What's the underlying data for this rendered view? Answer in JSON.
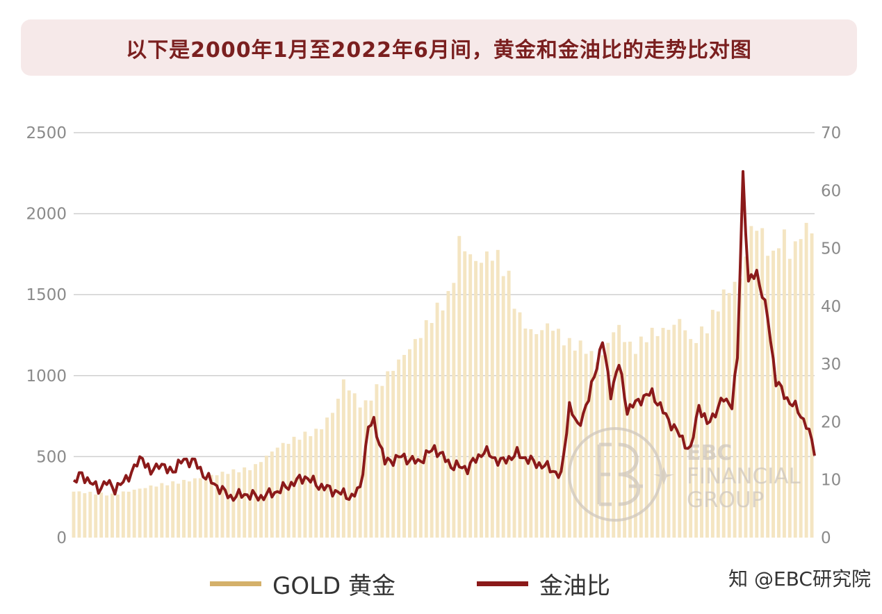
{
  "header": {
    "title": "以下是2000年1月至2022年6月间，黄金和金油比的走势比对图"
  },
  "legend": {
    "gold_label": "GOLD 黄金",
    "ratio_label": "金油比"
  },
  "source": {
    "text": "知 @EBC研究院"
  },
  "watermark": {
    "line1": "EBC",
    "line2": "FINANCIAL",
    "line3": "GROUP"
  },
  "colors": {
    "gold": "#d4b06a",
    "gold_bar": "#f4e5c2",
    "ratio": "#8b1a1a",
    "grid": "#cfcfcf",
    "axis_text": "#8a8a8a"
  },
  "chart_data": {
    "type": "bar+line",
    "x_range": [
      "2000-01",
      "2022-06"
    ],
    "y_left": {
      "ticks": [
        0,
        500,
        1000,
        1500,
        2000,
        2500
      ],
      "ylim": [
        0,
        2500
      ]
    },
    "y_right": {
      "ticks": [
        0,
        10,
        20,
        30,
        40,
        50,
        60,
        70
      ],
      "ylim": [
        0,
        70
      ]
    },
    "grid": "horizontal",
    "legend_position": "bottom",
    "series": [
      {
        "name": "GOLD 黄金",
        "type": "bar",
        "axis": "left",
        "keypoints": [
          [
            "2000-01",
            285
          ],
          [
            "2001-03",
            265
          ],
          [
            "2002-06",
            320
          ],
          [
            "2003-06",
            350
          ],
          [
            "2004-06",
            395
          ],
          [
            "2005-06",
            430
          ],
          [
            "2006-03",
            560
          ],
          [
            "2006-12",
            630
          ],
          [
            "2007-06",
            660
          ],
          [
            "2007-12",
            800
          ],
          [
            "2008-03",
            970
          ],
          [
            "2008-10",
            800
          ],
          [
            "2009-03",
            920
          ],
          [
            "2009-12",
            1110
          ],
          [
            "2010-06",
            1230
          ],
          [
            "2010-12",
            1390
          ],
          [
            "2011-06",
            1500
          ],
          [
            "2011-09",
            1830
          ],
          [
            "2012-03",
            1700
          ],
          [
            "2012-10",
            1760
          ],
          [
            "2013-03",
            1600
          ],
          [
            "2013-06",
            1380
          ],
          [
            "2013-12",
            1250
          ],
          [
            "2014-06",
            1320
          ],
          [
            "2014-12",
            1200
          ],
          [
            "2015-06",
            1180
          ],
          [
            "2015-12",
            1080
          ],
          [
            "2016-06",
            1320
          ],
          [
            "2016-12",
            1150
          ],
          [
            "2017-06",
            1260
          ],
          [
            "2017-12",
            1280
          ],
          [
            "2018-06",
            1350
          ],
          [
            "2018-09",
            1200
          ],
          [
            "2019-03",
            1300
          ],
          [
            "2019-09",
            1500
          ],
          [
            "2020-03",
            1600
          ],
          [
            "2020-08",
            1970
          ],
          [
            "2021-03",
            1720
          ],
          [
            "2021-06",
            1900
          ],
          [
            "2021-09",
            1760
          ],
          [
            "2021-12",
            1820
          ],
          [
            "2022-03",
            1940
          ],
          [
            "2022-06",
            1830
          ]
        ]
      },
      {
        "name": "金油比",
        "type": "line",
        "axis": "right",
        "keypoints": [
          [
            "2000-01",
            9.5
          ],
          [
            "2000-04",
            11
          ],
          [
            "2000-07",
            9.5
          ],
          [
            "2000-10",
            8.5
          ],
          [
            "2001-01",
            9.5
          ],
          [
            "2001-04",
            8.5
          ],
          [
            "2001-07",
            9.5
          ],
          [
            "2001-11",
            12
          ],
          [
            "2002-02",
            14
          ],
          [
            "2002-05",
            11
          ],
          [
            "2002-08",
            13
          ],
          [
            "2002-11",
            11.5
          ],
          [
            "2003-02",
            12
          ],
          [
            "2003-05",
            13.5
          ],
          [
            "2003-09",
            13
          ],
          [
            "2004-01",
            10.5
          ],
          [
            "2004-06",
            8.5
          ],
          [
            "2004-10",
            7
          ],
          [
            "2005-03",
            7.5
          ],
          [
            "2005-09",
            7
          ],
          [
            "2006-03",
            8
          ],
          [
            "2006-09",
            9.5
          ],
          [
            "2007-01",
            10.5
          ],
          [
            "2007-06",
            9
          ],
          [
            "2007-12",
            8
          ],
          [
            "2008-06",
            7
          ],
          [
            "2008-09",
            8.5
          ],
          [
            "2008-12",
            19
          ],
          [
            "2009-02",
            20
          ],
          [
            "2009-06",
            13
          ],
          [
            "2009-12",
            14
          ],
          [
            "2010-06",
            13
          ],
          [
            "2010-12",
            15.5
          ],
          [
            "2011-06",
            12.5
          ],
          [
            "2011-12",
            12
          ],
          [
            "2012-06",
            15
          ],
          [
            "2012-12",
            13
          ],
          [
            "2013-06",
            14.5
          ],
          [
            "2013-12",
            13
          ],
          [
            "2014-06",
            12
          ],
          [
            "2014-10",
            10.5
          ],
          [
            "2015-01",
            23
          ],
          [
            "2015-04",
            19
          ],
          [
            "2015-08",
            24
          ],
          [
            "2016-01",
            34
          ],
          [
            "2016-04",
            25
          ],
          [
            "2016-07",
            30
          ],
          [
            "2016-10",
            22
          ],
          [
            "2017-03",
            24
          ],
          [
            "2017-07",
            25
          ],
          [
            "2017-12",
            21
          ],
          [
            "2018-06",
            17
          ],
          [
            "2018-09",
            15
          ],
          [
            "2018-12",
            23
          ],
          [
            "2019-03",
            19.5
          ],
          [
            "2019-09",
            24
          ],
          [
            "2019-12",
            23
          ],
          [
            "2020-02",
            31
          ],
          [
            "2020-04",
            63
          ],
          [
            "2020-06",
            44
          ],
          [
            "2020-09",
            46
          ],
          [
            "2021-01",
            38
          ],
          [
            "2021-04",
            27
          ],
          [
            "2021-08",
            24
          ],
          [
            "2021-12",
            22
          ],
          [
            "2022-03",
            19.5
          ],
          [
            "2022-06",
            15
          ]
        ]
      }
    ]
  }
}
